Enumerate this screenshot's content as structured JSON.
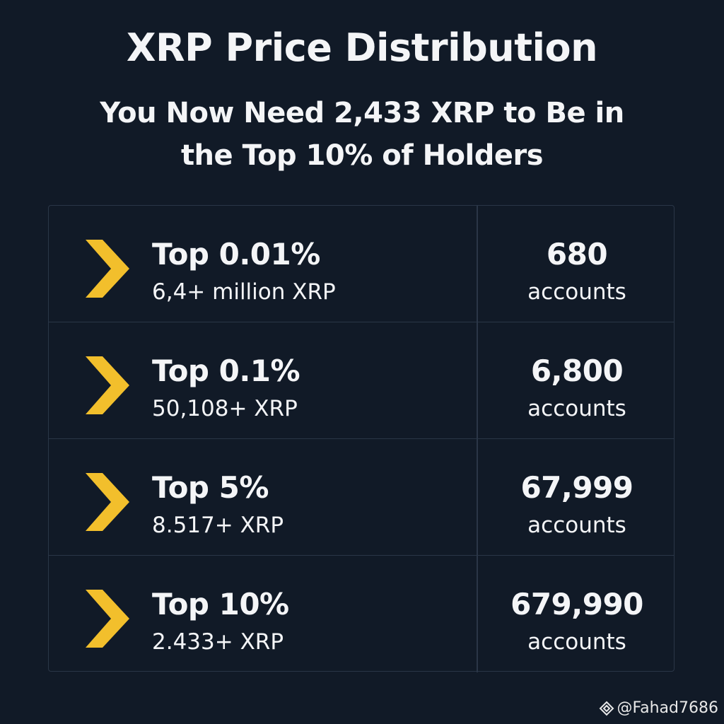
{
  "header": {
    "title": "XRP Price Distribution",
    "subtitle": "You Now Need 2,433 XRP to Be in the Top 10% of Holders"
  },
  "table": {
    "rows": [
      {
        "tier": "Top 0.01%",
        "threshold": "6,4+ million XRP",
        "count": "680",
        "unit": "accounts"
      },
      {
        "tier": "Top 0.1%",
        "threshold": "50,108+ XRP",
        "count": "6,800",
        "unit": "accounts"
      },
      {
        "tier": "Top 5%",
        "threshold": "8.517+ XRP",
        "count": "67,999",
        "unit": "accounts"
      },
      {
        "tier": "Top 10%",
        "threshold": "2.433+ XRP",
        "count": "679,990",
        "unit": "accounts"
      }
    ]
  },
  "watermark": "@Fahad7686"
}
